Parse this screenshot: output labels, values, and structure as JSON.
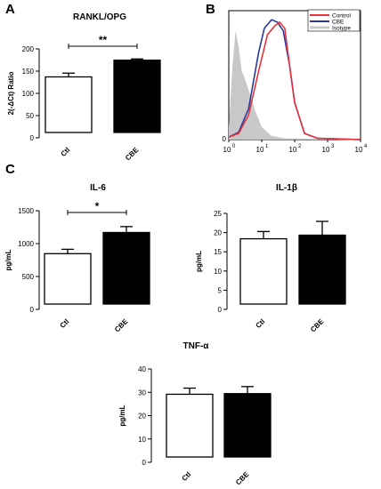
{
  "panel_labels": [
    "A",
    "B",
    "C"
  ],
  "chart_data": [
    {
      "type": "bar",
      "title": "RANKL/OPG",
      "ylabel": "2(-ΔCt) Ratio",
      "categories": [
        "Ctl",
        "CBE"
      ],
      "values": [
        133,
        173
      ],
      "errors": [
        9,
        3
      ],
      "ylim": [
        0,
        200
      ],
      "yticks": [
        0,
        50,
        100,
        150,
        200
      ],
      "bar_fills": [
        "#ffffff",
        "#000000"
      ],
      "significance": "**"
    },
    {
      "type": "area",
      "legend": [
        "Control",
        "CBE",
        "Isotype"
      ],
      "legend_placement": "top-right",
      "series_colors": [
        "#e8323c",
        "#2a3a9c",
        "#c8c8c8"
      ],
      "xscale": "log",
      "xlim": [
        1,
        10000
      ],
      "xtick_labels": [
        "10^0",
        "10^1",
        "10^2",
        "10^3",
        "10^4"
      ],
      "ytick_labels": [
        "0"
      ],
      "series": [
        {
          "name": "Control",
          "x": [
            1,
            2,
            4,
            8,
            15,
            25,
            35,
            50,
            70,
            100,
            200,
            500,
            10000
          ],
          "y": [
            0.02,
            0.05,
            0.2,
            0.55,
            0.85,
            0.92,
            0.95,
            0.9,
            0.6,
            0.3,
            0.05,
            0.01,
            0
          ]
        },
        {
          "name": "CBE",
          "x": [
            1,
            2,
            4,
            8,
            12,
            20,
            30,
            45,
            70,
            100,
            200,
            500,
            10000
          ],
          "y": [
            0.02,
            0.06,
            0.25,
            0.7,
            0.9,
            0.97,
            0.95,
            0.88,
            0.6,
            0.3,
            0.05,
            0.01,
            0
          ]
        },
        {
          "name": "Isotype",
          "x": [
            1,
            1.3,
            1.6,
            2,
            2.5,
            3,
            4,
            6,
            10,
            20,
            50,
            10000
          ],
          "y": [
            0.1,
            0.6,
            0.88,
            0.75,
            0.55,
            0.5,
            0.4,
            0.25,
            0.1,
            0.03,
            0.01,
            0
          ]
        }
      ]
    },
    {
      "type": "bar",
      "title": "IL-6",
      "ylabel": "pg/mL",
      "categories": [
        "Ctl",
        "CBE"
      ],
      "values": [
        810,
        1150
      ],
      "errors": [
        70,
        95
      ],
      "ylim": [
        0,
        1500
      ],
      "yticks": [
        0,
        500,
        1000,
        1500
      ],
      "bar_fills": [
        "#ffffff",
        "#000000"
      ],
      "significance": "*"
    },
    {
      "type": "bar",
      "title": "IL-1β",
      "ylabel": "pg/mL",
      "categories": [
        "Ctl",
        "CBE"
      ],
      "values": [
        18,
        19
      ],
      "errors": [
        2,
        3.8
      ],
      "ylim": [
        0,
        25
      ],
      "yticks": [
        0,
        5,
        10,
        15,
        20,
        25
      ],
      "bar_fills": [
        "#ffffff",
        "#000000"
      ]
    },
    {
      "type": "bar",
      "title": "TNF-α",
      "ylabel": "pg/mL",
      "categories": [
        "Ctl",
        "CBE"
      ],
      "values": [
        28.5,
        28.8
      ],
      "errors": [
        2.8,
        3.2
      ],
      "ylim": [
        0,
        40
      ],
      "yticks": [
        0,
        10,
        20,
        30,
        40
      ],
      "bar_fills": [
        "#ffffff",
        "#000000"
      ]
    }
  ]
}
